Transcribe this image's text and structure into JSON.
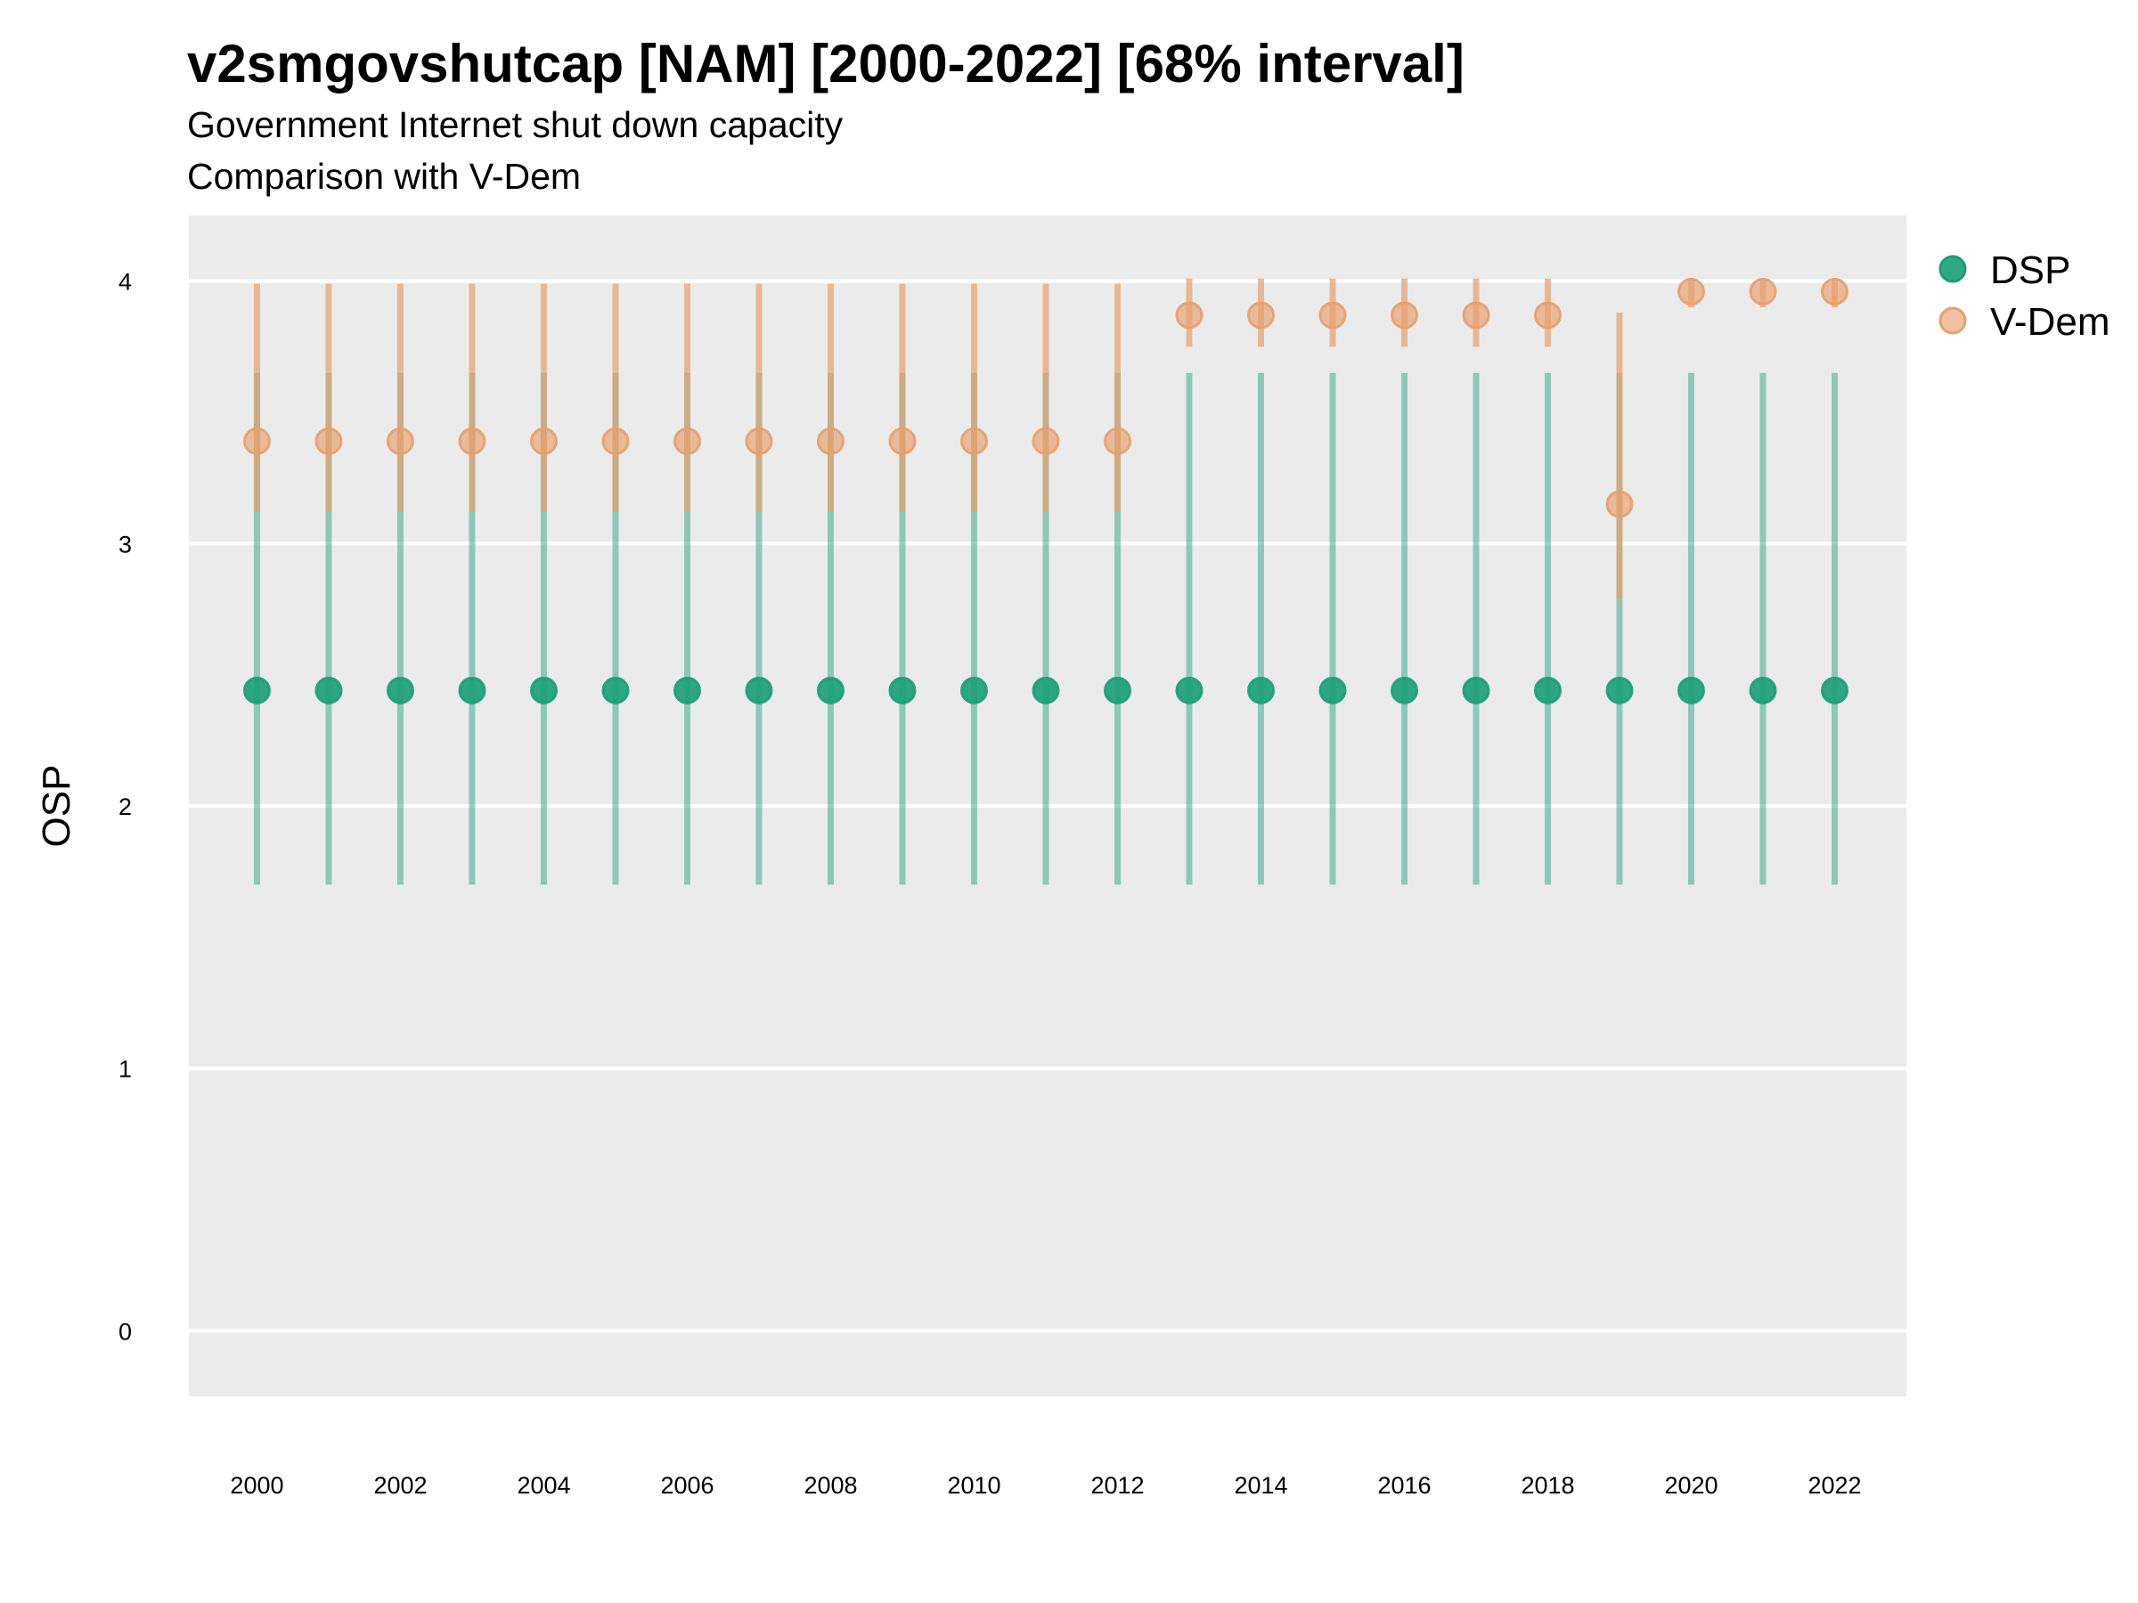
{
  "colors": {
    "panel": "#EBEBEB",
    "grid": "#FFFFFF",
    "dsp": "#1B9E77",
    "vdem": "#E6A06E"
  },
  "chart_data": {
    "type": "scatter",
    "title": "v2smgovshutcap [NAM] [2000-2022] [68% interval]",
    "subtitle": "Government Internet shut down capacity",
    "subtitle2": "Comparison with V-Dem",
    "xlabel": "",
    "ylabel": "OSP",
    "xlim": [
      1999.05,
      2023.0
    ],
    "ylim": [
      -0.25,
      4.25
    ],
    "x_ticks": [
      "2000",
      "2002",
      "2004",
      "2006",
      "2008",
      "2010",
      "2012",
      "2014",
      "2016",
      "2018",
      "2020",
      "2022"
    ],
    "y_ticks": [
      "0",
      "1",
      "2",
      "3",
      "4"
    ],
    "grid": true,
    "legend": {
      "position": "right",
      "entries": [
        "DSP",
        "V-Dem"
      ]
    },
    "x": [
      2000,
      2001,
      2002,
      2003,
      2004,
      2005,
      2006,
      2007,
      2008,
      2009,
      2010,
      2011,
      2012,
      2013,
      2014,
      2015,
      2016,
      2017,
      2018,
      2019,
      2020,
      2021,
      2022
    ],
    "series": [
      {
        "name": "DSP",
        "values": [
          2.44,
          2.44,
          2.44,
          2.44,
          2.44,
          2.44,
          2.44,
          2.44,
          2.44,
          2.44,
          2.44,
          2.44,
          2.44,
          2.44,
          2.44,
          2.44,
          2.44,
          2.44,
          2.44,
          2.44,
          2.44,
          2.44,
          2.44
        ],
        "lower": [
          1.7,
          1.7,
          1.7,
          1.7,
          1.7,
          1.7,
          1.7,
          1.7,
          1.7,
          1.7,
          1.7,
          1.7,
          1.7,
          1.7,
          1.7,
          1.7,
          1.7,
          1.7,
          1.7,
          1.7,
          1.7,
          1.7,
          1.7
        ],
        "upper": [
          3.65,
          3.65,
          3.65,
          3.65,
          3.65,
          3.65,
          3.65,
          3.65,
          3.65,
          3.65,
          3.65,
          3.65,
          3.65,
          3.65,
          3.65,
          3.65,
          3.65,
          3.65,
          3.65,
          3.65,
          3.65,
          3.65,
          3.65
        ]
      },
      {
        "name": "V-Dem",
        "values": [
          3.39,
          3.39,
          3.39,
          3.39,
          3.39,
          3.39,
          3.39,
          3.39,
          3.39,
          3.39,
          3.39,
          3.39,
          3.39,
          3.87,
          3.87,
          3.87,
          3.87,
          3.87,
          3.87,
          3.15,
          3.96,
          3.96,
          3.96
        ],
        "lower": [
          3.12,
          3.12,
          3.12,
          3.12,
          3.12,
          3.12,
          3.12,
          3.12,
          3.12,
          3.12,
          3.12,
          3.12,
          3.12,
          3.75,
          3.75,
          3.75,
          3.75,
          3.75,
          3.75,
          2.79,
          3.9,
          3.9,
          3.9
        ],
        "upper": [
          3.99,
          3.99,
          3.99,
          3.99,
          3.99,
          3.99,
          3.99,
          3.99,
          3.99,
          3.99,
          3.99,
          3.99,
          3.99,
          4.01,
          4.01,
          4.01,
          4.01,
          4.01,
          4.01,
          3.88,
          4.01,
          4.01,
          4.01
        ]
      }
    ]
  }
}
